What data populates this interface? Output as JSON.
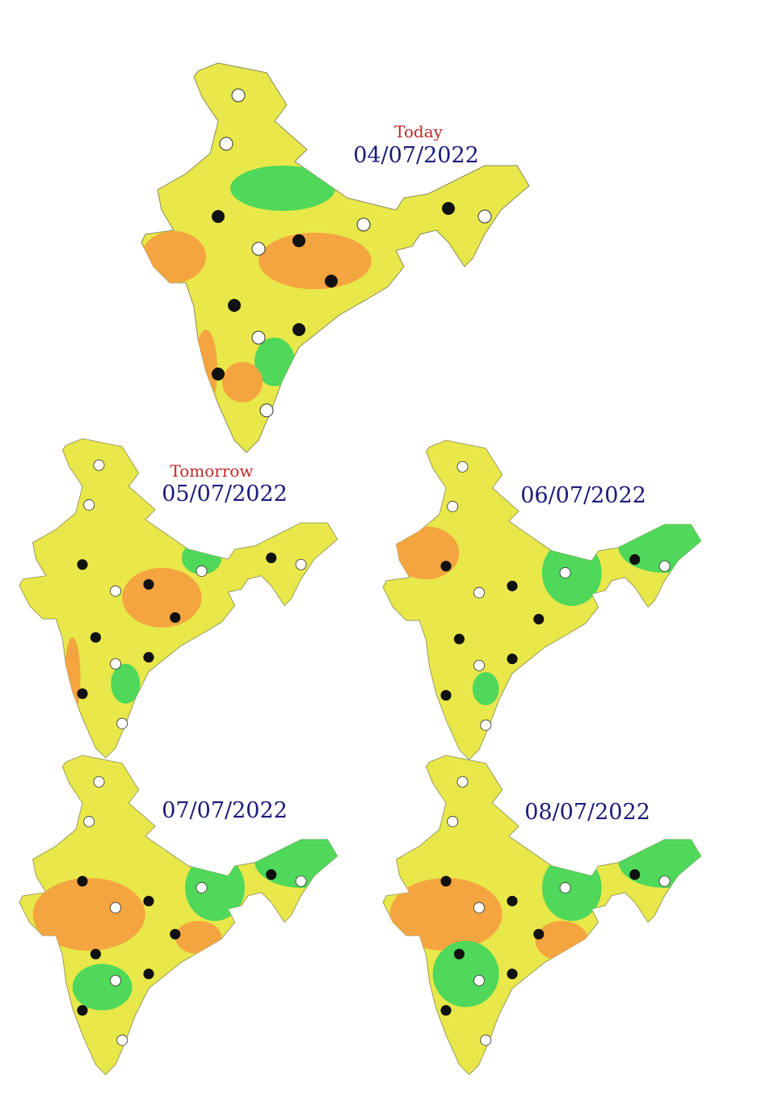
{
  "panels": [
    {
      "label": "Today",
      "date": "04/07/2022"
    },
    {
      "label": "Tomorrow",
      "date": "05/07/2022"
    },
    {
      "date": "06/07/2022"
    },
    {
      "date": "07/07/2022"
    },
    {
      "date": "08/07/2022"
    }
  ]
}
